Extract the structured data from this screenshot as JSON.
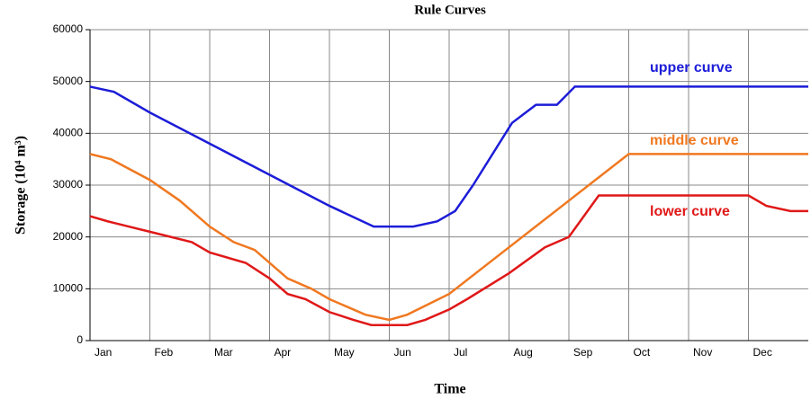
{
  "chart_data": {
    "type": "line",
    "title": "Rule Curves",
    "x_label": "Time",
    "y_label": "Storage (10⁴ m³)",
    "xlim": [
      0,
      12
    ],
    "xticks": [
      {
        "value": 0,
        "label": "Jan"
      },
      {
        "value": 1,
        "label": "Feb"
      },
      {
        "value": 2,
        "label": "Mar"
      },
      {
        "value": 3,
        "label": "Apr"
      },
      {
        "value": 4,
        "label": "May"
      },
      {
        "value": 5,
        "label": "Jun"
      },
      {
        "value": 6,
        "label": "Jul"
      },
      {
        "value": 7,
        "label": "Aug"
      },
      {
        "value": 8,
        "label": "Sep"
      },
      {
        "value": 9,
        "label": "Oct"
      },
      {
        "value": 10,
        "label": "Nov"
      },
      {
        "value": 11,
        "label": "Dec"
      }
    ],
    "ylim": [
      0,
      60000
    ],
    "yticks": [
      0,
      10000,
      20000,
      30000,
      40000,
      50000,
      60000
    ],
    "grid": true,
    "series": [
      {
        "name": "upper curve",
        "color": "#1c1cd8",
        "x": [
          0,
          0.4,
          1,
          2,
          3,
          4,
          4.74,
          5.4,
          5.8,
          6.1,
          6.4,
          7.05,
          7.45,
          7.8,
          8.1,
          12
        ],
        "values": [
          49000,
          48000,
          44000,
          38000,
          32000,
          26000,
          22000,
          22000,
          23000,
          25000,
          30000,
          42000,
          45500,
          45500,
          49000,
          49000
        ]
      },
      {
        "name": "middle curve",
        "color": "#f07820",
        "x": [
          0,
          0.35,
          1,
          1.5,
          2,
          2.4,
          2.75,
          3.3,
          3.7,
          4,
          4.6,
          5,
          5.3,
          6,
          7,
          8,
          9,
          12
        ],
        "values": [
          36000,
          35000,
          31000,
          27000,
          22000,
          19000,
          17500,
          12000,
          10000,
          8000,
          5000,
          4000,
          5000,
          9000,
          18000,
          27000,
          36000,
          36000
        ]
      },
      {
        "name": "lower curve",
        "color": "#e01818",
        "x": [
          0,
          0.3,
          1,
          1.7,
          2,
          2.6,
          3,
          3.3,
          3.6,
          4,
          4.4,
          4.7,
          5.3,
          5.6,
          6,
          6.3,
          7,
          7.6,
          8,
          8.5,
          11,
          11.3,
          11.7,
          12
        ],
        "values": [
          24000,
          23000,
          21000,
          19000,
          17000,
          15000,
          12000,
          9000,
          8000,
          5500,
          4000,
          3000,
          3000,
          4000,
          6000,
          8000,
          13000,
          18000,
          20000,
          28000,
          28000,
          26000,
          25000,
          25000
        ]
      }
    ]
  }
}
